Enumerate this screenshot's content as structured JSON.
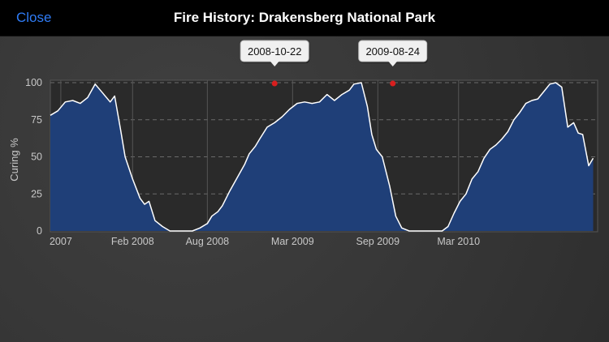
{
  "header": {
    "close_label": "Close",
    "title": "Fire History: Drakensberg National Park"
  },
  "colors": {
    "accent": "#2f7cf6",
    "area_fill": "#1f3f78",
    "line": "#ffffff",
    "marker": "#d81e1e"
  },
  "chart_data": {
    "type": "area",
    "ylabel": "Curing %",
    "xlabel": "",
    "ylim": [
      0,
      100
    ],
    "xlim": [
      0.0,
      3.66
    ],
    "y_ticks": [
      0,
      25,
      50,
      75,
      100
    ],
    "x_ticks": [
      {
        "label": "2007",
        "x": 0.07
      },
      {
        "label": "Feb 2008",
        "x": 0.55
      },
      {
        "label": "Aug 2008",
        "x": 1.05
      },
      {
        "label": "Mar 2009",
        "x": 1.62
      },
      {
        "label": "Sep 2009",
        "x": 2.19
      },
      {
        "label": "Mar 2010",
        "x": 2.73
      }
    ],
    "grid": true,
    "series": [
      {
        "points": [
          [
            0.0,
            78
          ],
          [
            0.05,
            81
          ],
          [
            0.1,
            87
          ],
          [
            0.15,
            88
          ],
          [
            0.2,
            86
          ],
          [
            0.25,
            90
          ],
          [
            0.3,
            99
          ],
          [
            0.35,
            93
          ],
          [
            0.4,
            87
          ],
          [
            0.43,
            91
          ],
          [
            0.47,
            68
          ],
          [
            0.5,
            50
          ],
          [
            0.55,
            35
          ],
          [
            0.6,
            22
          ],
          [
            0.63,
            18
          ],
          [
            0.66,
            20
          ],
          [
            0.7,
            7
          ],
          [
            0.75,
            3
          ],
          [
            0.8,
            0
          ],
          [
            0.95,
            0
          ],
          [
            1.0,
            2
          ],
          [
            1.05,
            5
          ],
          [
            1.08,
            10
          ],
          [
            1.12,
            13
          ],
          [
            1.15,
            17
          ],
          [
            1.2,
            27
          ],
          [
            1.25,
            36
          ],
          [
            1.3,
            45
          ],
          [
            1.33,
            52
          ],
          [
            1.37,
            57
          ],
          [
            1.4,
            62
          ],
          [
            1.45,
            70
          ],
          [
            1.5,
            73
          ],
          [
            1.55,
            77
          ],
          [
            1.6,
            82
          ],
          [
            1.65,
            86
          ],
          [
            1.7,
            87
          ],
          [
            1.75,
            86
          ],
          [
            1.8,
            87
          ],
          [
            1.85,
            92
          ],
          [
            1.9,
            88
          ],
          [
            1.95,
            92
          ],
          [
            2.0,
            95
          ],
          [
            2.03,
            99
          ],
          [
            2.08,
            100
          ],
          [
            2.12,
            84
          ],
          [
            2.15,
            65
          ],
          [
            2.18,
            55
          ],
          [
            2.22,
            50
          ],
          [
            2.27,
            30
          ],
          [
            2.31,
            10
          ],
          [
            2.35,
            2
          ],
          [
            2.4,
            0
          ],
          [
            2.62,
            0
          ],
          [
            2.66,
            3
          ],
          [
            2.7,
            12
          ],
          [
            2.74,
            20
          ],
          [
            2.78,
            25
          ],
          [
            2.82,
            35
          ],
          [
            2.86,
            40
          ],
          [
            2.9,
            49
          ],
          [
            2.94,
            55
          ],
          [
            2.98,
            58
          ],
          [
            3.02,
            62
          ],
          [
            3.06,
            67
          ],
          [
            3.1,
            75
          ],
          [
            3.14,
            80
          ],
          [
            3.18,
            86
          ],
          [
            3.22,
            88
          ],
          [
            3.26,
            89
          ],
          [
            3.3,
            94
          ],
          [
            3.34,
            99
          ],
          [
            3.38,
            100
          ],
          [
            3.42,
            97
          ],
          [
            3.46,
            70
          ],
          [
            3.5,
            73
          ],
          [
            3.53,
            66
          ],
          [
            3.56,
            65
          ],
          [
            3.6,
            44
          ],
          [
            3.63,
            49
          ]
        ]
      }
    ],
    "annotations": [
      {
        "label": "2008-10-22",
        "x": 1.5,
        "y": 100
      },
      {
        "label": "2009-08-24",
        "x": 2.29,
        "y": 100
      }
    ]
  }
}
